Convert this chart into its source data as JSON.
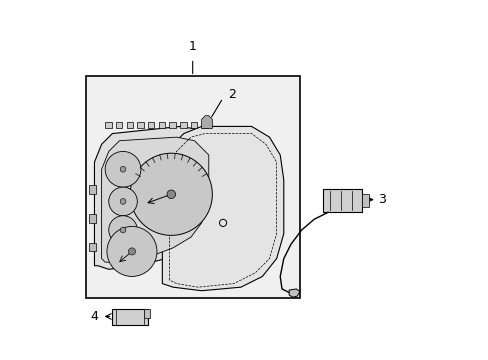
{
  "background_color": "#ffffff",
  "fig_width": 4.89,
  "fig_height": 3.6,
  "dpi": 100,
  "line_color": "#000000",
  "fill_light": "#e8e8e8",
  "fill_medium": "#d0d0d0",
  "label_1": "1",
  "label_2": "2",
  "label_3": "3",
  "label_4": "4",
  "font_size_labels": 9
}
